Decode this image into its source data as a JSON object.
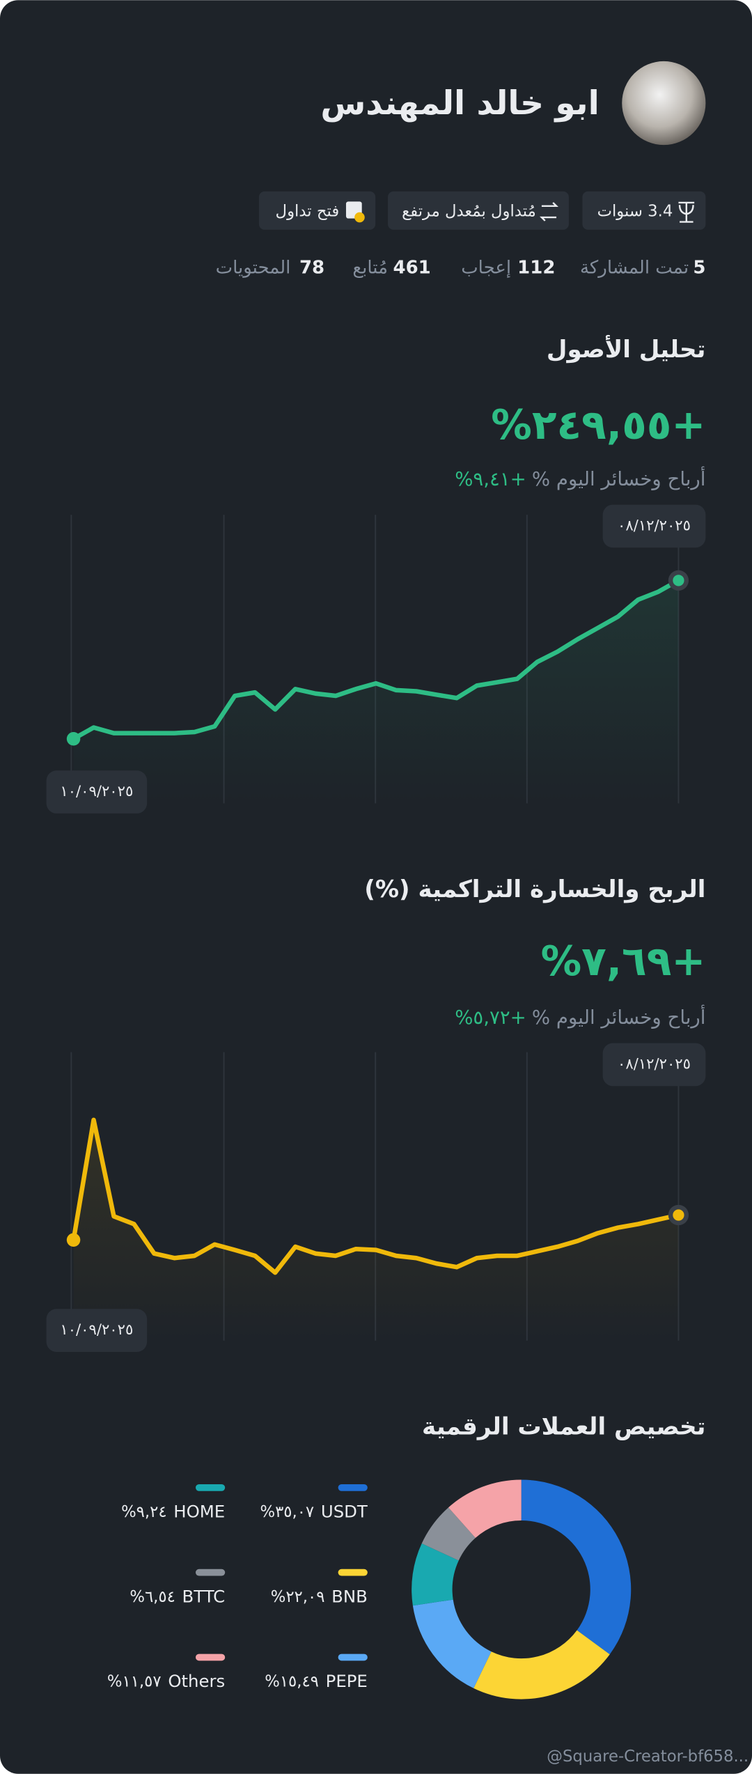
{
  "profile": {
    "name": "ابو خالد المهندس",
    "tags": [
      "3.4 سنوات",
      "مُتداول بمُعدل مرتفع",
      "فتح تداول"
    ],
    "stats": [
      {
        "value": 5,
        "label": "تمت المشاركة"
      },
      {
        "value": 112,
        "label": "إعجاب"
      },
      {
        "value": 461,
        "label": "مُتابع"
      },
      {
        "value": 78,
        "label": "المحتويات"
      }
    ]
  },
  "chart_data": [
    {
      "type": "line",
      "title": "تحليل الأصول",
      "headline": "+٢٤٩,٥٥%",
      "daily_label": "أرباح وخسائر اليوم %",
      "daily_value": "+٩,٤١%",
      "start_date": "١٠/٠٩/٢٠٢٥",
      "end_date": "٠٨/١٢/٢٠٢٥",
      "color": "#2ebd85",
      "ylim": [
        -10,
        270
      ],
      "values": [
        0,
        17.8,
        8.9,
        8.9,
        8.9,
        8.9,
        10.7,
        19.6,
        67.7,
        73.1,
        46.3,
        78.4,
        71.3,
        67.7,
        78.4,
        87.3,
        76.6,
        74.9,
        69.5,
        64.2,
        83.8,
        89.1,
        94.5,
        121.2,
        137.3,
        156.9,
        174.7,
        192.5,
        219.2,
        231.7,
        249.55
      ]
    },
    {
      "type": "line",
      "title": "الربح والخسارة التراكمية (%)",
      "headline": "+٧,٦٩%",
      "daily_label": "أرباح وخسائر اليوم %",
      "daily_value": "+٥,٧٢%",
      "start_date": "١٠/٠٩/٢٠٢٥",
      "end_date": "٠٨/١٢/٢٠٢٥",
      "color": "#f0b90b",
      "ylim": [
        -15,
        42
      ],
      "values": [
        0,
        37.1,
        7.3,
        4.9,
        -4.2,
        -5.6,
        -4.9,
        -1.4,
        -3.1,
        -4.9,
        -10.1,
        -2.1,
        -4.2,
        -4.9,
        -2.8,
        -3.1,
        -4.9,
        -5.6,
        -7.3,
        -8.4,
        -5.6,
        -4.9,
        -4.9,
        -3.5,
        -2.1,
        -0.3,
        2.1,
        3.8,
        4.9,
        6.3,
        7.69
      ]
    },
    {
      "type": "donut",
      "title": "تخصيص العملات الرقمية",
      "categories": [
        "USDT",
        "BNB",
        "PEPE",
        "HOME",
        "BTTC",
        "Others"
      ],
      "values": [
        35.07,
        22.09,
        15.49,
        9.24,
        6.54,
        11.57
      ],
      "value_labels": [
        "٣٥,٠٧%",
        "٢٢,٠٩%",
        "١٥,٤٩%",
        "٩,٢٤%",
        "٦,٥٤%",
        "١١,٥٧%"
      ],
      "colors": [
        "#1f6fd6",
        "#fcd535",
        "#5aa9f5",
        "#19a9b0",
        "#8a9099",
        "#f5a3a8"
      ]
    }
  ],
  "watermark": "@Square-Creator-bf658..."
}
